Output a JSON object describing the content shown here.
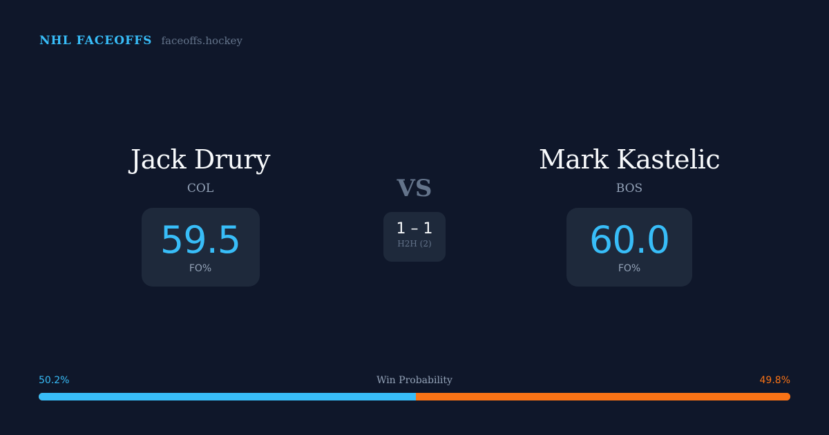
{
  "brand": {
    "name": "NHL FACEOFFS",
    "url": "faceoffs.hockey"
  },
  "players": [
    {
      "name": "Jack Drury",
      "team": "COL",
      "fo_pct": "59.5",
      "fo_label": "FO%"
    },
    {
      "name": "Mark Kastelic",
      "team": "BOS",
      "fo_pct": "60.0",
      "fo_label": "FO%"
    }
  ],
  "vs_label": "VS",
  "h2h": {
    "score": "1 – 1",
    "label": "H2H (2)"
  },
  "win_probability": {
    "title": "Win Probability",
    "left_label": "50.2%",
    "right_label": "49.8%",
    "left_value": 50.2,
    "right_value": 49.8
  },
  "colors": {
    "background": "#0f172a",
    "card": "#1e293b",
    "accent_left": "#38bdf8",
    "accent_right": "#f97316"
  }
}
